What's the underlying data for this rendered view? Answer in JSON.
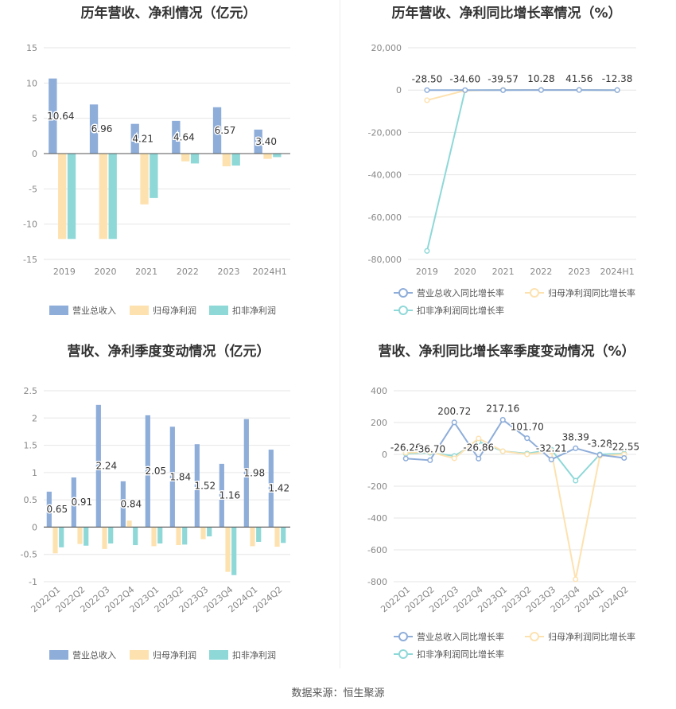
{
  "source": "数据来源：恒生聚源",
  "colors": {
    "revenue": "#8eadd9",
    "net_profit": "#fde2b0",
    "deducted": "#8fd8d8",
    "axis_text": "#888888",
    "grid": "#e6e6e6",
    "title": "#333333"
  },
  "chart_data": [
    {
      "id": "annual-amount",
      "type": "bar",
      "title": "历年营收、净利情况（亿元）",
      "categories": [
        "2019",
        "2020",
        "2021",
        "2022",
        "2023",
        "2024H1"
      ],
      "ylim": [
        -15,
        15
      ],
      "yticks": [
        15,
        10,
        5,
        0,
        -5,
        -10,
        -15
      ],
      "ytick_labels": [
        "15",
        "10",
        "5",
        "0",
        "-5",
        "-10",
        "-15"
      ],
      "series": [
        {
          "name": "营业总收入",
          "values": [
            10.64,
            6.96,
            4.21,
            4.64,
            6.57,
            3.4
          ],
          "labels": [
            "10.64",
            "6.96",
            "4.21",
            "4.64",
            "6.57",
            "3.40"
          ]
        },
        {
          "name": "归母净利润",
          "values": [
            -12.1,
            -12.1,
            -7.2,
            -1.1,
            -1.8,
            -0.75
          ]
        },
        {
          "name": "扣非净利润",
          "values": [
            -12.1,
            -12.1,
            -6.3,
            -1.4,
            -1.7,
            -0.5
          ]
        }
      ],
      "legend": "bottom"
    },
    {
      "id": "annual-growth",
      "type": "line",
      "title": "历年营收、净利同比增长率情况（%）",
      "categories": [
        "2019",
        "2020",
        "2021",
        "2022",
        "2023",
        "2024H1"
      ],
      "ylim": [
        -80000,
        20000
      ],
      "yticks": [
        20000,
        0,
        -20000,
        -40000,
        -60000,
        -80000
      ],
      "ytick_labels": [
        "20,000",
        "0",
        "-20,000",
        "-40,000",
        "-60,000",
        "-80,000"
      ],
      "series": [
        {
          "name": "营业总收入同比增长率",
          "values": [
            -28.5,
            -34.6,
            -39.57,
            10.28,
            41.56,
            -12.38
          ],
          "labels": [
            "-28.50",
            "-34.60",
            "-39.57",
            "10.28",
            "41.56",
            "-12.38"
          ]
        },
        {
          "name": "归母净利润同比增长率",
          "values": [
            -4800,
            -200,
            50,
            30,
            40,
            -60
          ]
        },
        {
          "name": "扣非净利润同比增长率",
          "values": [
            -76000,
            -150,
            20,
            40,
            30,
            -80
          ]
        }
      ],
      "legend": "bottom"
    },
    {
      "id": "quarterly-amount",
      "type": "bar",
      "title": "营收、净利季度变动情况（亿元）",
      "categories": [
        "2022Q1",
        "2022Q2",
        "2022Q3",
        "2022Q4",
        "2023Q1",
        "2023Q2",
        "2023Q3",
        "2023Q4",
        "2024Q1",
        "2024Q2"
      ],
      "ylim": [
        -1,
        2.5
      ],
      "yticks": [
        2.5,
        2,
        1.5,
        1,
        0.5,
        0,
        -0.5,
        -1
      ],
      "ytick_labels": [
        "2.5",
        "2",
        "1.5",
        "1",
        "0.5",
        "0",
        "-0.5",
        "-1"
      ],
      "series": [
        {
          "name": "营业总收入",
          "values": [
            0.65,
            0.91,
            2.24,
            0.84,
            2.05,
            1.84,
            1.52,
            1.16,
            1.98,
            1.42
          ],
          "labels": [
            "0.65",
            "0.91",
            "2.24",
            "0.84",
            "2.05",
            "1.84",
            "1.52",
            "1.16",
            "1.98",
            "1.42"
          ]
        },
        {
          "name": "归母净利润",
          "values": [
            -0.48,
            -0.31,
            -0.4,
            0.12,
            -0.35,
            -0.33,
            -0.22,
            -0.82,
            -0.35,
            -0.36
          ]
        },
        {
          "name": "扣非净利润",
          "values": [
            -0.37,
            -0.34,
            -0.3,
            -0.33,
            -0.3,
            -0.32,
            -0.17,
            -0.88,
            -0.27,
            -0.29
          ]
        }
      ],
      "legend": "bottom"
    },
    {
      "id": "quarterly-growth",
      "type": "line",
      "title": "营收、净利同比增长率季度变动情况（%）",
      "categories": [
        "2022Q1",
        "2022Q2",
        "2022Q3",
        "2022Q4",
        "2023Q1",
        "2023Q2",
        "2023Q3",
        "2023Q4",
        "2024Q1",
        "2024Q2"
      ],
      "ylim": [
        -800,
        400
      ],
      "yticks": [
        400,
        200,
        0,
        -200,
        -400,
        -600,
        -800
      ],
      "ytick_labels": [
        "400",
        "200",
        "0",
        "-200",
        "-400",
        "-600",
        "-800"
      ],
      "series": [
        {
          "name": "营业总收入同比增长率",
          "values": [
            -26.26,
            -36.7,
            200.72,
            -26.86,
            217.16,
            101.7,
            -32.21,
            38.39,
            -3.28,
            -22.55
          ],
          "labels": [
            "-26.26",
            "-36.70",
            "200.72",
            "-26.86",
            "217.16",
            "101.70",
            "-32.21",
            "38.39",
            "-3.28",
            "-22.55"
          ]
        },
        {
          "name": "归母净利润同比增长率",
          "values": [
            10,
            15,
            -25,
            100,
            20,
            0,
            20,
            -785,
            -10,
            0
          ]
        },
        {
          "name": "扣非净利润同比增长率",
          "values": [
            5,
            10,
            -10,
            80,
            20,
            5,
            30,
            -165,
            0,
            5
          ]
        }
      ],
      "legend": "bottom"
    }
  ]
}
